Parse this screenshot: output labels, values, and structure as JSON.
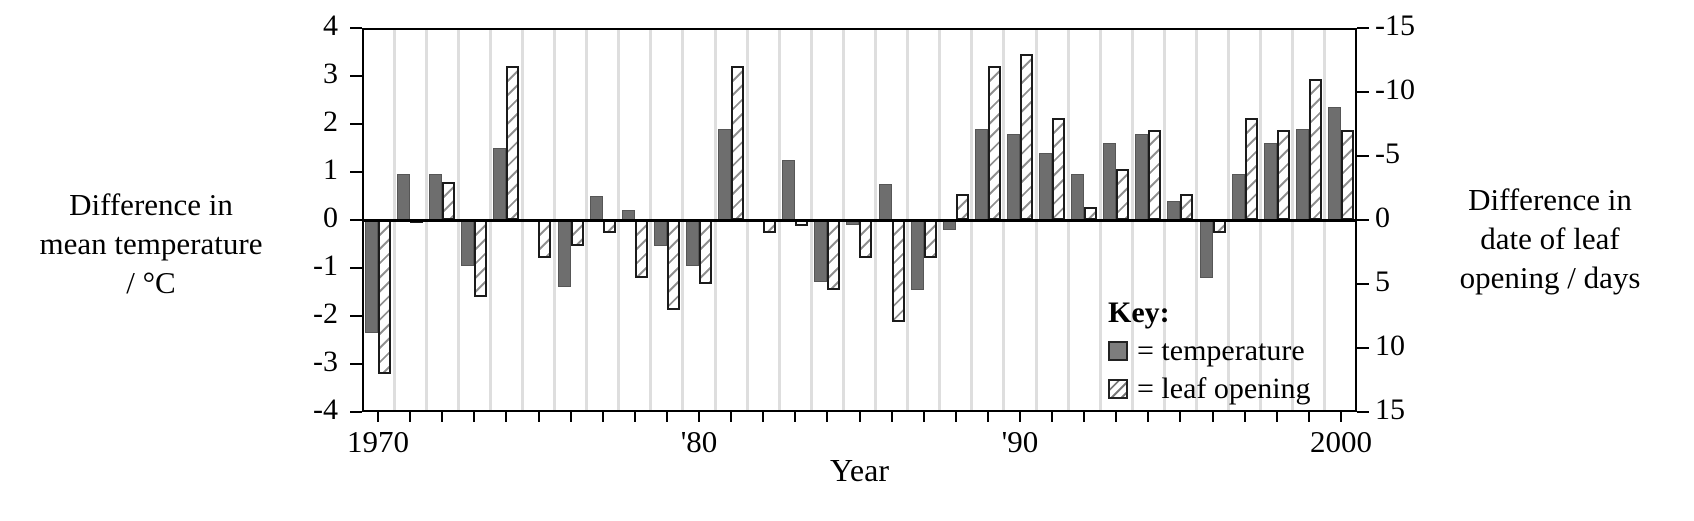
{
  "chart_data": {
    "type": "bar",
    "title": "",
    "years": [
      1970,
      1971,
      1972,
      1973,
      1974,
      1975,
      1976,
      1977,
      1978,
      1979,
      1980,
      1981,
      1982,
      1983,
      1984,
      1985,
      1986,
      1987,
      1988,
      1989,
      1990,
      1991,
      1992,
      1993,
      1994,
      1995,
      1996,
      1997,
      1998,
      1999,
      2000
    ],
    "series": [
      {
        "name": "temperature",
        "axis": "left",
        "unit": "°C",
        "values": [
          -2.35,
          0.95,
          0.95,
          -0.95,
          1.5,
          0,
          -1.4,
          0.5,
          0.2,
          -0.55,
          -0.95,
          1.9,
          0,
          1.25,
          -1.3,
          -0.1,
          0.75,
          -1.45,
          -0.2,
          1.9,
          1.8,
          1.4,
          0.95,
          1.6,
          1.8,
          0.4,
          -1.2,
          0.95,
          1.6,
          1.9,
          2.35
        ]
      },
      {
        "name": "leaf opening",
        "axis": "right",
        "unit": "days",
        "values": [
          12,
          0,
          -3,
          6,
          -12,
          3,
          2,
          1,
          4.5,
          7,
          5,
          -12,
          1,
          0.5,
          5.5,
          3,
          8,
          3,
          -2,
          -12,
          -13,
          -8,
          -1,
          -4,
          -7,
          -2,
          1,
          -8,
          -7,
          -11,
          -7
        ]
      }
    ],
    "x_axis": {
      "label": "Year",
      "tick_interval_years": 1,
      "decade_labels": [
        "1970",
        "'80",
        "'90",
        "2000"
      ],
      "decade_years": [
        1970,
        1980,
        1990,
        2000
      ]
    },
    "left_axis": {
      "label_lines": [
        "Difference in",
        "mean temperature",
        "/ °C"
      ],
      "min": -4,
      "max": 4,
      "ticks": [
        4,
        3,
        2,
        1,
        0,
        -1,
        -2,
        -3,
        -4
      ]
    },
    "right_axis": {
      "label_lines": [
        "Difference in",
        "date of leaf",
        "opening / days"
      ],
      "min": -15,
      "max": 15,
      "inverted": true,
      "days_per_degree": 3.75,
      "ticks": [
        -15,
        -10,
        -5,
        0,
        5,
        10,
        15
      ]
    },
    "key": {
      "title": "Key:",
      "items": [
        {
          "swatch": "solid-gray-square",
          "label": "= temperature"
        },
        {
          "swatch": "hatched-square",
          "label": "= leaf opening"
        }
      ]
    },
    "colors": {
      "temperature_bar": "#6e6e6e",
      "hatch_line": "#8f8f8f",
      "bar_edge": "#1b1b1b",
      "gridline": "#dedede",
      "axis": "#000000",
      "background": "#ffffff"
    },
    "layout": {
      "legend_position": "inside-lower-right",
      "grid": "vertical-year-separators",
      "bars_per_year": 2
    }
  }
}
